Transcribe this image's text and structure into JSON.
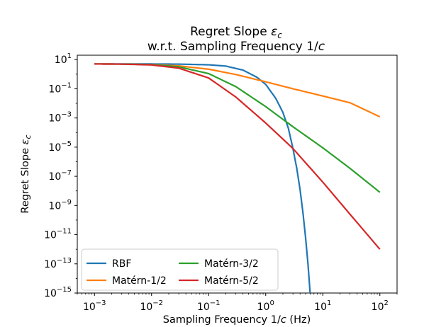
{
  "chart_data": {
    "type": "line",
    "title_line1_main": "Regret Slope ",
    "title_line1_sym": "ε",
    "title_line1_sub": "c",
    "title_line2_main": "w.r.t. Sampling Frequency 1/",
    "title_line2_sym": "c",
    "xlabel_main": "Sampling Frequency 1/",
    "xlabel_sym": "c",
    "xlabel_unit": " (Hz)",
    "ylabel_main": "Regret Slope ",
    "ylabel_sym": "ε",
    "ylabel_sub": "c",
    "x_scale": "log",
    "y_scale": "log",
    "xlim": [
      0.0005,
      200
    ],
    "ylim": [
      1e-15,
      20
    ],
    "x_ticks": [
      {
        "base": "10",
        "exp": "−3",
        "value": 0.001
      },
      {
        "base": "10",
        "exp": "−2",
        "value": 0.01
      },
      {
        "base": "10",
        "exp": "−1",
        "value": 0.1
      },
      {
        "base": "10",
        "exp": "0",
        "value": 1
      },
      {
        "base": "10",
        "exp": "1",
        "value": 10
      },
      {
        "base": "10",
        "exp": "2",
        "value": 100
      }
    ],
    "y_ticks": [
      {
        "base": "10",
        "exp": "1",
        "value": 10
      },
      {
        "base": "10",
        "exp": "−1",
        "value": 0.1
      },
      {
        "base": "10",
        "exp": "−3",
        "value": 0.001
      },
      {
        "base": "10",
        "exp": "−5",
        "value": 1e-05
      },
      {
        "base": "10",
        "exp": "−7",
        "value": 1e-07
      },
      {
        "base": "10",
        "exp": "−9",
        "value": 1e-09
      },
      {
        "base": "10",
        "exp": "−11",
        "value": 1e-11
      },
      {
        "base": "10",
        "exp": "−13",
        "value": 1e-13
      },
      {
        "base": "10",
        "exp": "−15",
        "value": 1e-15
      }
    ],
    "grid": false,
    "legend_position": "lower-left",
    "series": [
      {
        "name": "RBF",
        "color": "#1f77b4",
        "x": [
          0.001,
          0.01,
          0.03,
          0.1,
          0.2,
          0.4,
          0.7,
          1,
          1.5,
          2,
          2.5,
          3,
          3.5,
          4,
          4.5,
          5,
          5.5,
          6
        ],
        "y": [
          5,
          5,
          4.9,
          4.4,
          3.6,
          1.9,
          0.62,
          0.2,
          0.022,
          0.0024,
          0.00019,
          8e-06,
          3.5e-07,
          1.2e-08,
          3e-10,
          6e-12,
          1e-13,
          1e-15
        ]
      },
      {
        "name": "Matérn-1/2",
        "color": "#ff7f0e",
        "x": [
          0.001,
          0.003,
          0.01,
          0.03,
          0.1,
          0.3,
          1,
          3,
          10,
          30,
          100
        ],
        "y": [
          5,
          4.9,
          4.6,
          3.7,
          2.2,
          0.95,
          0.3,
          0.1,
          0.032,
          0.011,
          0.0012
        ]
      },
      {
        "name": "Matérn-3/2",
        "color": "#2ca02c",
        "x": [
          0.001,
          0.003,
          0.01,
          0.03,
          0.1,
          0.3,
          1,
          3,
          10,
          30,
          100
        ],
        "y": [
          5,
          4.9,
          4.5,
          3.2,
          1.1,
          0.14,
          0.006,
          0.00025,
          9e-06,
          3.5e-07,
          8e-09
        ]
      },
      {
        "name": "Matérn-5/2",
        "color": "#d62728",
        "x": [
          0.001,
          0.003,
          0.01,
          0.03,
          0.1,
          0.3,
          1,
          3,
          10,
          30,
          100
        ],
        "y": [
          5,
          4.9,
          4.3,
          2.6,
          0.55,
          0.027,
          0.00045,
          8e-06,
          4e-08,
          2.5e-10,
          1e-12
        ]
      }
    ]
  }
}
